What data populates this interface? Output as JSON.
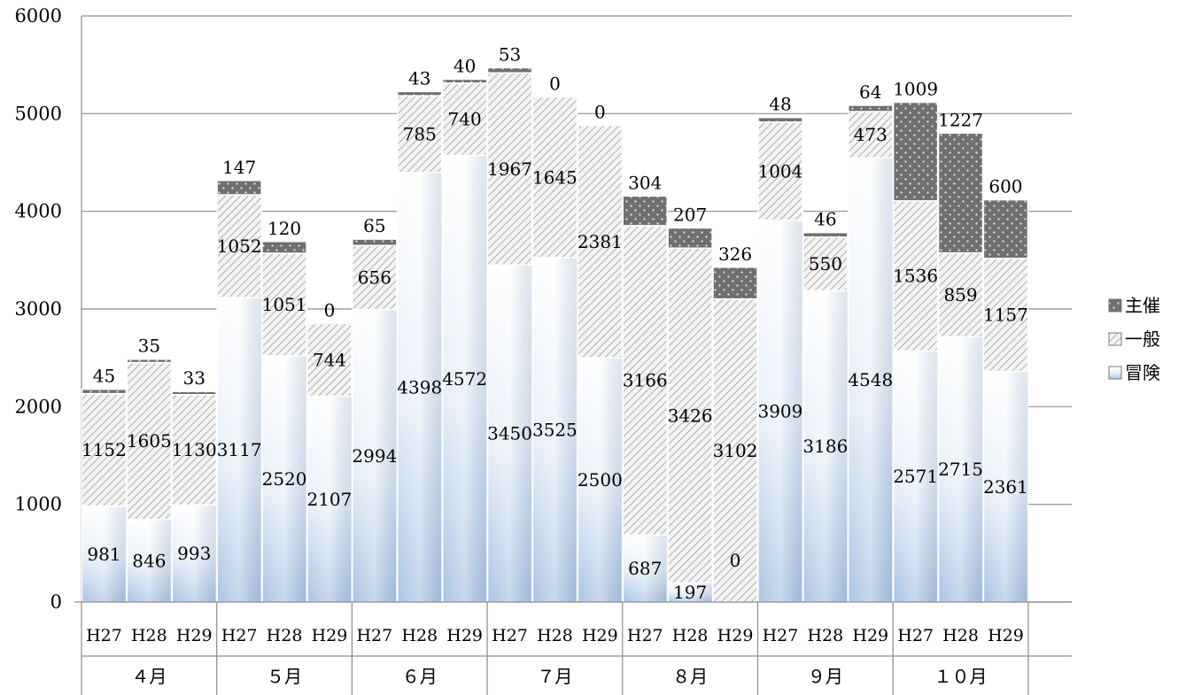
{
  "chart_data": {
    "type": "bar",
    "stacked": true,
    "categories": [
      "H27",
      "H28",
      "H29",
      "H27",
      "H28",
      "H29",
      "H27",
      "H28",
      "H29",
      "H27",
      "H28",
      "H29",
      "H27",
      "H28",
      "H29",
      "H27",
      "H28",
      "H29",
      "H27",
      "H28",
      "H29"
    ],
    "groups": [
      {
        "label": "４月",
        "span": 3
      },
      {
        "label": "５月",
        "span": 3
      },
      {
        "label": "６月",
        "span": 3
      },
      {
        "label": "７月",
        "span": 3
      },
      {
        "label": "８月",
        "span": 3
      },
      {
        "label": "９月",
        "span": 3
      },
      {
        "label": "１０月",
        "span": 3
      }
    ],
    "series": [
      {
        "name": "冒険",
        "values": [
          981,
          846,
          993,
          3117,
          2520,
          2107,
          2994,
          4398,
          4572,
          3450,
          3525,
          2500,
          687,
          197,
          0,
          3909,
          3186,
          4548,
          2571,
          2715,
          2361
        ]
      },
      {
        "name": "一般",
        "values": [
          1152,
          1605,
          1130,
          1052,
          1051,
          744,
          656,
          785,
          740,
          1967,
          1645,
          2381,
          3166,
          3426,
          3102,
          1004,
          550,
          473,
          1536,
          859,
          1157
        ]
      },
      {
        "name": "主催",
        "values": [
          45,
          35,
          33,
          147,
          120,
          0,
          65,
          43,
          40,
          53,
          0,
          0,
          304,
          207,
          326,
          48,
          46,
          64,
          1009,
          1227,
          600
        ]
      }
    ],
    "ylim": [
      0,
      6000
    ],
    "yticks": [
      0,
      1000,
      2000,
      3000,
      4000,
      5000,
      6000
    ],
    "grid": true,
    "legend_position": "right",
    "title": "",
    "xlabel": "",
    "ylabel": ""
  }
}
